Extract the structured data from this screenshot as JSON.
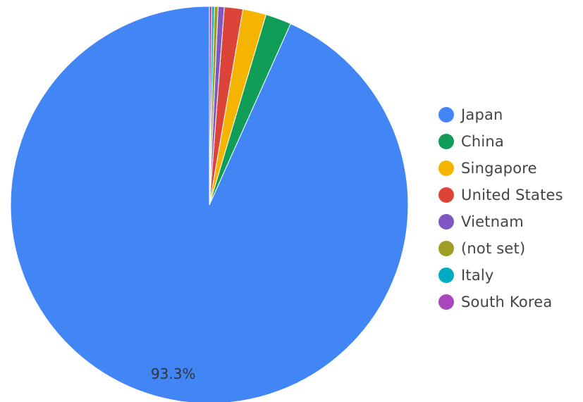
{
  "chart_data": {
    "type": "pie",
    "categories": [
      "Japan",
      "China",
      "Singapore",
      "United States",
      "Vietnam",
      "(not set)",
      "Italy",
      "South Korea"
    ],
    "values": [
      93.3,
      2.1,
      1.9,
      1.5,
      0.5,
      0.3,
      0.2,
      0.2
    ],
    "colors": [
      "#4285f4",
      "#0f9d58",
      "#f4b400",
      "#db4437",
      "#7e57c2",
      "#9e9d24",
      "#00acc1",
      "#ab47bc"
    ],
    "data_labels": [
      "93.3%"
    ],
    "legend_position": "right"
  }
}
